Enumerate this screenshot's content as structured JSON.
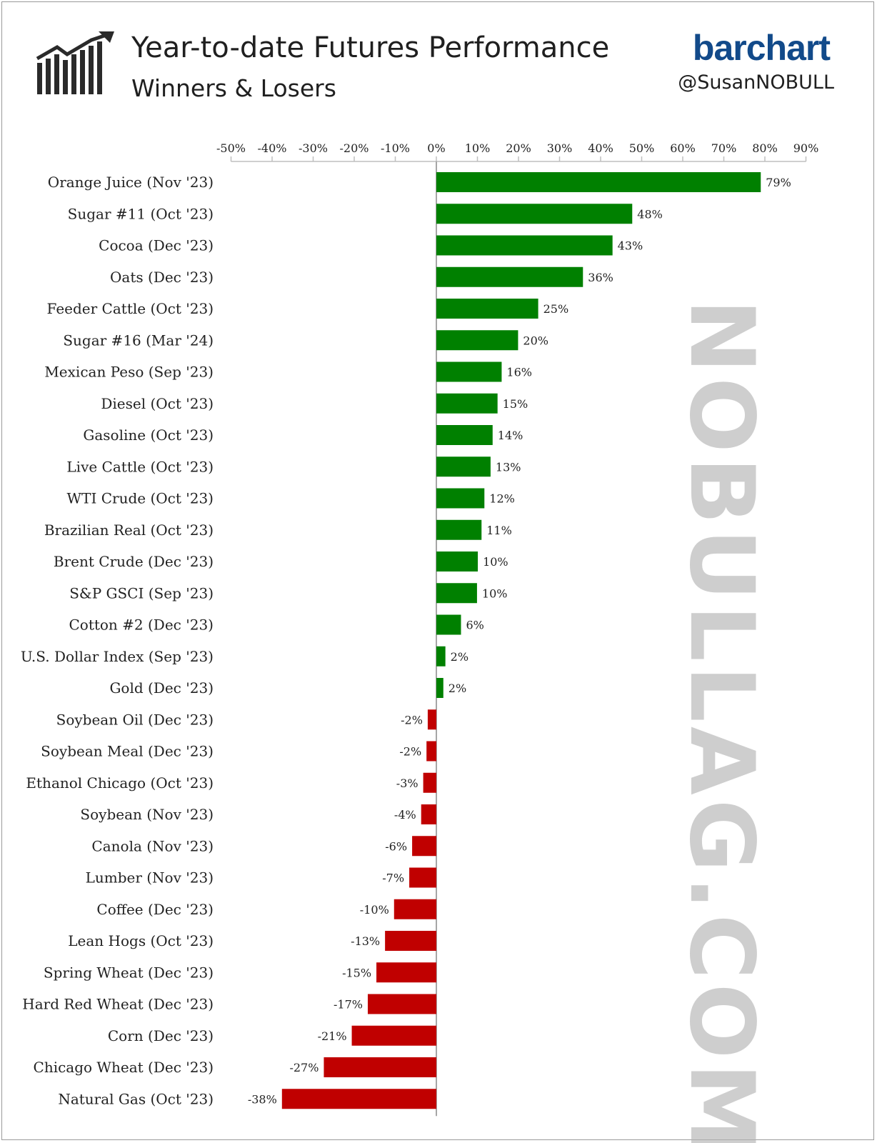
{
  "header": {
    "title": "Year-to-date Futures Performance",
    "subtitle": "Winners & Losers",
    "brand": "barchart",
    "handle": "@SusanNOBULL"
  },
  "watermark": "NOBULLAG.COM",
  "colors": {
    "positive": "#008000",
    "negative": "#c00000",
    "axis": "#bfbfbf",
    "zero_line": "#a6a6a6"
  },
  "chart_data": {
    "type": "bar",
    "orientation": "horizontal",
    "title": "Year-to-date Futures Performance",
    "subtitle": "Winners & Losers",
    "xlim": [
      -50,
      90
    ],
    "x_ticks": [
      -50,
      -40,
      -30,
      -20,
      -10,
      0,
      10,
      20,
      30,
      40,
      50,
      60,
      70,
      80,
      90
    ],
    "x_tick_labels": [
      "-50%",
      "-40%",
      "-30%",
      "-20%",
      "-10%",
      "0%",
      "10%",
      "20%",
      "30%",
      "40%",
      "50%",
      "60%",
      "70%",
      "80%",
      "90%"
    ],
    "x_axis_position": "top",
    "grid": false,
    "categories": [
      "Orange Juice (Nov '23)",
      "Sugar #11 (Oct '23)",
      "Cocoa (Dec '23)",
      "Oats (Dec '23)",
      "Feeder Cattle (Oct '23)",
      "Sugar #16 (Mar '24)",
      "Mexican Peso (Sep '23)",
      "Diesel (Oct '23)",
      "Gasoline (Oct '23)",
      "Live Cattle (Oct '23)",
      "WTI Crude (Oct '23)",
      "Brazilian Real (Oct '23)",
      "Brent Crude (Dec '23)",
      "S&P GSCI (Sep '23)",
      "Cotton #2 (Dec '23)",
      "U.S. Dollar Index (Sep '23)",
      "Gold (Dec '23)",
      "Soybean Oil (Dec '23)",
      "Soybean Meal (Dec '23)",
      "Ethanol Chicago (Oct '23)",
      "Soybean (Nov '23)",
      "Canola (Nov '23)",
      "Lumber (Nov '23)",
      "Coffee (Dec '23)",
      "Lean Hogs (Oct '23)",
      "Spring Wheat (Dec '23)",
      "Hard Red Wheat (Dec '23)",
      "Corn (Dec '23)",
      "Chicago Wheat (Dec '23)",
      "Natural Gas (Oct '23)"
    ],
    "values": [
      79,
      47.7,
      42.9,
      35.7,
      24.8,
      19.9,
      15.9,
      14.9,
      13.7,
      13.2,
      11.7,
      11.0,
      10.1,
      9.9,
      6.0,
      2.2,
      1.7,
      -2.1,
      -2.4,
      -3.2,
      -3.7,
      -5.9,
      -6.6,
      -10.3,
      -12.5,
      -14.6,
      -16.7,
      -20.6,
      -27.4,
      -37.6
    ],
    "data_labels": [
      "79%",
      "48%",
      "43%",
      "36%",
      "25%",
      "20%",
      "16%",
      "15%",
      "14%",
      "13%",
      "12%",
      "11%",
      "10%",
      "10%",
      "6%",
      "2%",
      "2%",
      "-2%",
      "-2%",
      "-3%",
      "-4%",
      "-6%",
      "-7%",
      "-10%",
      "-13%",
      "-15%",
      "-17%",
      "-21%",
      "-27%",
      "-38%"
    ]
  }
}
